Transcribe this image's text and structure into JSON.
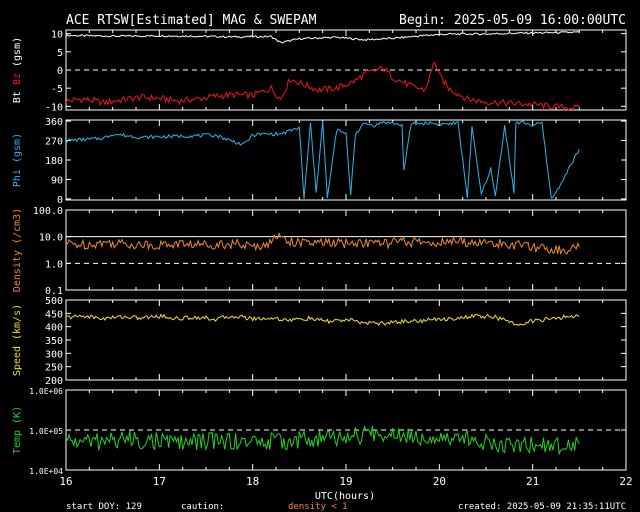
{
  "header": {
    "title": "ACE RTSW[Estimated] MAG & SWEPAM",
    "begin": "Begin: 2025-05-09 16:00:00UTC"
  },
  "footer": {
    "start_doy": "start DOY: 129",
    "caution": "caution:",
    "density_note": "density < 1",
    "created": "created: 2025-05-09 21:35:11UTC"
  },
  "colors": {
    "background": "#000000",
    "axes": "#ffffff",
    "bt": "#ffffff",
    "bz": "#e8171c",
    "phi": "#29b6e8",
    "density": "#f08a2c",
    "speed": "#ebe12c",
    "temp": "#23d223"
  },
  "chart_data": [
    {
      "type": "line",
      "panel": "mag",
      "ylabel": "Bt Bz (gsm)",
      "ylabel_parts": [
        "Bt",
        "Bz",
        "(gsm)"
      ],
      "ylim": [
        -11,
        11
      ],
      "yticks": [
        10,
        5,
        0,
        -5,
        -10
      ],
      "dashed_levels": [
        0
      ],
      "series": [
        {
          "name": "Bt",
          "x": [
            16.0,
            16.3,
            16.6,
            17.0,
            17.4,
            17.8,
            18.2,
            18.3,
            18.5,
            18.9,
            19.2,
            19.5,
            19.8,
            20.0,
            20.2,
            20.5,
            20.8,
            21.0,
            21.3,
            21.5
          ],
          "y": [
            9.5,
            9.4,
            9.3,
            9.4,
            9.3,
            9.1,
            9.2,
            7.5,
            8.6,
            9.0,
            8.3,
            8.7,
            9.4,
            9.8,
            9.9,
            9.9,
            10.1,
            10.2,
            10.3,
            10.4
          ]
        },
        {
          "name": "Bz",
          "x": [
            16.0,
            16.2,
            16.4,
            16.6,
            16.8,
            17.0,
            17.2,
            17.4,
            17.6,
            17.8,
            18.0,
            18.2,
            18.3,
            18.4,
            18.55,
            18.7,
            18.9,
            19.1,
            19.2,
            19.4,
            19.5,
            19.7,
            19.85,
            19.95,
            20.0,
            20.1,
            20.3,
            20.5,
            20.8,
            21.0,
            21.2,
            21.5
          ],
          "y": [
            -8.5,
            -8.0,
            -9.0,
            -8.2,
            -7.5,
            -7.8,
            -8.5,
            -8.0,
            -7.2,
            -6.8,
            -7.0,
            -5.0,
            -8.0,
            -2.5,
            -4.0,
            -5.5,
            -5.0,
            -3.0,
            -1.0,
            0.5,
            -2.0,
            -4.5,
            -5.5,
            2.5,
            -1.5,
            -5.0,
            -8.0,
            -8.8,
            -9.2,
            -9.5,
            -10.0,
            -10.5
          ]
        }
      ]
    },
    {
      "type": "line",
      "panel": "phi",
      "ylabel": "Phi (gsm)",
      "ylabel_parts": [
        "Phi",
        "(gsm)"
      ],
      "ylim": [
        -5,
        365
      ],
      "yticks": [
        360,
        270,
        180,
        90,
        0
      ],
      "series": [
        {
          "name": "Phi",
          "x": [
            16.0,
            16.4,
            16.5,
            16.8,
            17.2,
            17.6,
            17.9,
            18.0,
            18.1,
            18.3,
            18.5,
            18.55,
            18.62,
            18.68,
            18.75,
            18.8,
            18.9,
            19.0,
            19.05,
            19.1,
            19.2,
            19.3,
            19.4,
            19.5,
            19.6,
            19.62,
            19.7,
            19.8,
            19.9,
            20.0,
            20.2,
            20.3,
            20.35,
            20.45,
            20.55,
            20.6,
            20.7,
            20.8,
            20.82,
            20.9,
            21.0,
            21.1,
            21.2,
            21.25,
            21.3,
            21.4,
            21.5
          ],
          "y": [
            270,
            280,
            300,
            285,
            290,
            295,
            250,
            295,
            300,
            300,
            330,
            0,
            350,
            30,
            360,
            0,
            320,
            300,
            20,
            300,
            350,
            340,
            355,
            350,
            340,
            130,
            350,
            348,
            352,
            345,
            350,
            10,
            330,
            20,
            140,
            10,
            340,
            30,
            350,
            355,
            340,
            350,
            0,
            30,
            70,
            150,
            230
          ]
        }
      ]
    },
    {
      "type": "line",
      "panel": "density",
      "ylabel": "Density (/cm3)",
      "scale": "log",
      "ylim": [
        0.1,
        100
      ],
      "yticks": [
        "100.0",
        "10.0",
        "1.0",
        "0.1"
      ],
      "dashed_levels": [
        1.0
      ],
      "solid_levels": [
        10.0
      ],
      "series": [
        {
          "name": "Density",
          "x": [
            16.0,
            16.2,
            16.4,
            16.6,
            16.8,
            17.0,
            17.2,
            17.4,
            17.6,
            17.8,
            18.0,
            18.2,
            18.3,
            18.4,
            18.6,
            18.8,
            19.0,
            19.2,
            19.4,
            19.6,
            19.8,
            20.0,
            20.2,
            20.4,
            20.6,
            20.8,
            21.0,
            21.2,
            21.35,
            21.5
          ],
          "y": [
            5.5,
            5.0,
            6.0,
            5.5,
            5.0,
            4.8,
            5.5,
            5.0,
            5.2,
            5.5,
            4.0,
            6.0,
            12.0,
            6.5,
            5.5,
            6.0,
            5.5,
            6.0,
            5.5,
            6.5,
            6.0,
            6.0,
            6.5,
            6.0,
            5.5,
            5.0,
            4.0,
            3.5,
            3.0,
            4.0
          ]
        }
      ]
    },
    {
      "type": "line",
      "panel": "speed",
      "ylabel": "Speed (km/s)",
      "ylim": [
        200,
        500
      ],
      "yticks": [
        500,
        450,
        400,
        350,
        300,
        250,
        200
      ],
      "series": [
        {
          "name": "Speed",
          "x": [
            16.0,
            16.2,
            16.4,
            16.6,
            16.8,
            17.0,
            17.2,
            17.4,
            17.6,
            17.8,
            18.0,
            18.2,
            18.4,
            18.6,
            18.8,
            19.0,
            19.2,
            19.4,
            19.6,
            19.8,
            20.0,
            20.2,
            20.4,
            20.6,
            20.8,
            21.0,
            21.2,
            21.4,
            21.5
          ],
          "y": [
            435,
            440,
            430,
            438,
            432,
            440,
            430,
            436,
            428,
            440,
            430,
            432,
            425,
            430,
            420,
            425,
            415,
            412,
            420,
            422,
            428,
            432,
            440,
            436,
            410,
            420,
            430,
            438,
            440
          ]
        }
      ]
    },
    {
      "type": "line",
      "panel": "temp",
      "ylabel": "Temp (K)",
      "scale": "log",
      "ylim": [
        10000,
        1000000
      ],
      "yticks": [
        "1.0E+06",
        "1.0E+05",
        "1.0E+04"
      ],
      "dashed_levels": [
        100000
      ],
      "series": [
        {
          "name": "Temp",
          "x": [
            16.0,
            16.3,
            16.6,
            17.0,
            17.3,
            17.6,
            18.0,
            18.3,
            18.6,
            19.0,
            19.3,
            19.5,
            19.8,
            20.0,
            20.3,
            20.6,
            21.0,
            21.3,
            21.5
          ],
          "y": [
            55000,
            50000,
            60000,
            52000,
            48000,
            55000,
            50000,
            52000,
            58000,
            65000,
            80000,
            85000,
            70000,
            72000,
            60000,
            45000,
            42000,
            40000,
            45000
          ]
        }
      ]
    }
  ],
  "x_axis": {
    "xlabel": "UTC(hours)",
    "xlim": [
      16,
      22
    ],
    "ticks": [
      "16",
      "17",
      "18",
      "19",
      "20",
      "21",
      "22"
    ]
  }
}
